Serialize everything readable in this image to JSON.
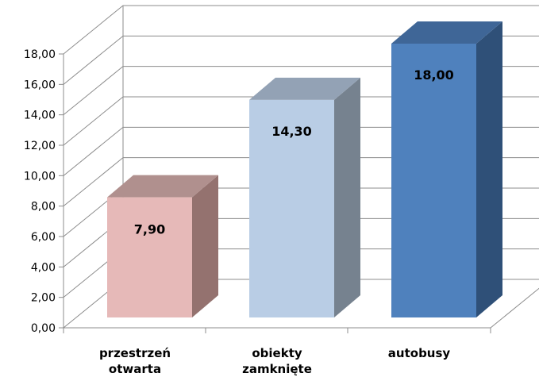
{
  "chart_data": {
    "type": "bar",
    "categories": [
      "przestrzeń otwarta",
      "obiekty zamknięte",
      "autobusy"
    ],
    "category_lines": [
      [
        "przestrzeń",
        "otwarta"
      ],
      [
        "obiekty",
        "zamknięte"
      ],
      [
        "autobusy"
      ]
    ],
    "values": [
      7.9,
      14.3,
      18.0
    ],
    "data_labels": [
      "7,90",
      "14,30",
      "18,00"
    ],
    "yticks": [
      "0,00",
      "2,00",
      "4,00",
      "6,00",
      "8,00",
      "10,00",
      "12,00",
      "14,00",
      "16,00",
      "18,00"
    ],
    "ylim": [
      0,
      18
    ],
    "grid": true,
    "legend": "none",
    "colors": [
      {
        "front": "#e6b9b8",
        "side": "#94726f",
        "top": "#b0908e"
      },
      {
        "front": "#b9cde5",
        "side": "#76828f",
        "top": "#93a2b5"
      },
      {
        "front": "#4f81bd",
        "side": "#2f5078",
        "top": "#3f6697"
      }
    ]
  }
}
